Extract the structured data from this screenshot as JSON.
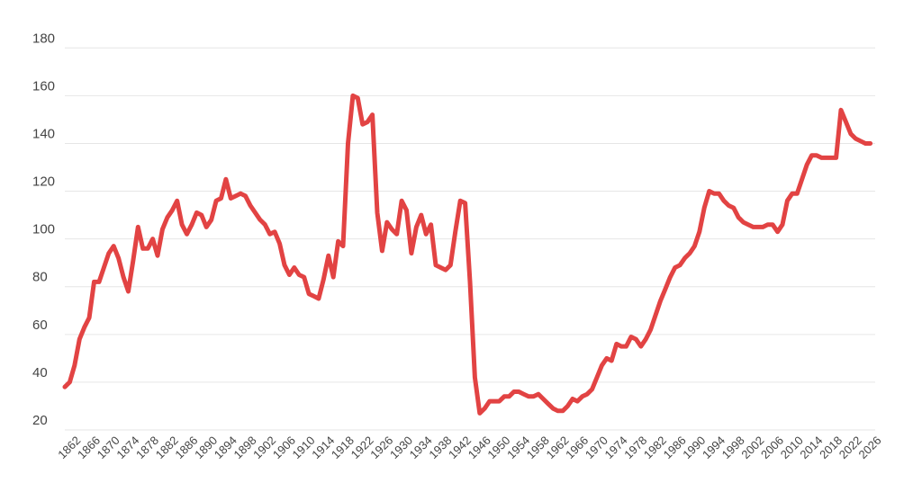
{
  "chart_data": {
    "type": "line",
    "title": "",
    "xlabel": "",
    "ylabel": "",
    "grid": true,
    "colors": {
      "line": "#e24343",
      "grid": "#e6e6e6",
      "text": "#444444"
    },
    "xlim": [
      1860,
      2026
    ],
    "ylim": [
      20,
      185
    ],
    "yticks": [
      20,
      40,
      60,
      80,
      100,
      120,
      140,
      160,
      180
    ],
    "xticks": [
      1862,
      1866,
      1870,
      1874,
      1878,
      1882,
      1886,
      1890,
      1894,
      1898,
      1902,
      1906,
      1910,
      1914,
      1918,
      1922,
      1926,
      1930,
      1934,
      1938,
      1942,
      1946,
      1950,
      1954,
      1958,
      1962,
      1966,
      1970,
      1974,
      1978,
      1982,
      1986,
      1990,
      1994,
      1998,
      2002,
      2006,
      2010,
      2014,
      2018,
      2022,
      2026
    ],
    "series": [
      {
        "name": "",
        "x": [
          1860,
          1861,
          1862,
          1863,
          1864,
          1865,
          1866,
          1867,
          1868,
          1869,
          1870,
          1871,
          1872,
          1873,
          1874,
          1875,
          1876,
          1877,
          1878,
          1879,
          1880,
          1881,
          1882,
          1883,
          1884,
          1885,
          1886,
          1887,
          1888,
          1889,
          1890,
          1891,
          1892,
          1893,
          1894,
          1895,
          1896,
          1897,
          1898,
          1899,
          1900,
          1901,
          1902,
          1903,
          1904,
          1905,
          1906,
          1907,
          1908,
          1909,
          1910,
          1911,
          1912,
          1913,
          1914,
          1915,
          1916,
          1917,
          1918,
          1919,
          1920,
          1921,
          1922,
          1923,
          1924,
          1925,
          1926,
          1927,
          1928,
          1929,
          1930,
          1931,
          1932,
          1933,
          1934,
          1935,
          1936,
          1937,
          1938,
          1939,
          1940,
          1941,
          1942,
          1943,
          1944,
          1945,
          1946,
          1947,
          1948,
          1949,
          1950,
          1951,
          1952,
          1953,
          1954,
          1955,
          1956,
          1957,
          1958,
          1959,
          1960,
          1961,
          1962,
          1963,
          1964,
          1965,
          1966,
          1967,
          1968,
          1969,
          1970,
          1971,
          1972,
          1973,
          1974,
          1975,
          1976,
          1977,
          1978,
          1979,
          1980,
          1981,
          1982,
          1983,
          1984,
          1985,
          1986,
          1987,
          1988,
          1989,
          1990,
          1991,
          1992,
          1993,
          1994,
          1995,
          1996,
          1997,
          1998,
          1999,
          2000,
          2001,
          2002,
          2003,
          2004,
          2005,
          2006,
          2007,
          2008,
          2009,
          2010,
          2011,
          2012,
          2013,
          2014,
          2015,
          2016,
          2017,
          2018,
          2019,
          2020,
          2021,
          2022,
          2023,
          2024,
          2025
        ],
        "values": [
          38,
          40,
          47,
          58,
          63,
          67,
          82,
          82,
          88,
          94,
          97,
          92,
          84,
          78,
          91,
          105,
          96,
          96,
          100,
          93,
          104,
          109,
          112,
          116,
          106,
          102,
          106,
          111,
          110,
          105,
          108,
          116,
          117,
          125,
          117,
          118,
          119,
          118,
          114,
          111,
          108,
          106,
          102,
          103,
          98,
          89,
          85,
          88,
          85,
          84,
          77,
          76,
          75,
          83,
          93,
          84,
          99,
          97,
          140,
          160,
          159,
          148,
          149,
          152,
          111,
          95,
          107,
          104,
          102,
          116,
          112,
          94,
          105,
          110,
          102,
          106,
          89,
          88,
          87,
          89,
          103,
          116,
          115,
          82,
          42,
          27,
          29,
          32,
          32,
          32,
          34,
          34,
          36,
          36,
          35,
          34,
          34,
          35,
          33,
          31,
          29,
          28,
          28,
          30,
          33,
          32,
          34,
          35,
          37,
          42,
          47,
          50,
          49,
          56,
          55,
          55,
          59,
          58,
          55,
          58,
          62,
          68,
          74,
          79,
          84,
          88,
          89,
          92,
          94,
          97,
          103,
          113,
          120,
          119,
          119,
          116,
          114,
          113,
          109,
          107,
          106,
          105,
          105,
          105,
          106,
          106,
          103,
          106,
          116,
          119,
          119,
          125,
          131,
          135,
          135,
          134,
          134,
          134,
          134,
          154,
          149,
          144,
          142,
          141,
          140,
          140
        ]
      }
    ]
  }
}
